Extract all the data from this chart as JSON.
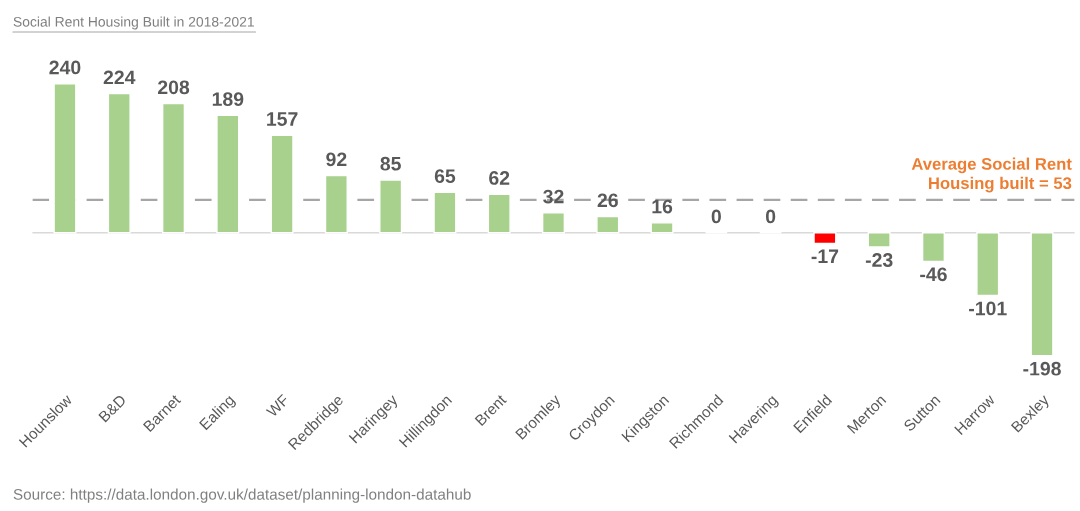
{
  "chart_data": {
    "type": "bar",
    "title": "Social Rent Housing Built in 2018-2021",
    "categories": [
      "Hounslow",
      "B&D",
      "Barnet",
      "Ealing",
      "WF",
      "Redbridge",
      "Haringey",
      "Hillingdon",
      "Brent",
      "Bromley",
      "Croydon",
      "Kingston",
      "Richmond",
      "Havering",
      "Enfield",
      "Merton",
      "Sutton",
      "Harrow",
      "Bexley"
    ],
    "values": [
      240,
      224,
      208,
      189,
      157,
      92,
      85,
      65,
      62,
      32,
      26,
      16,
      0,
      0,
      -17,
      -23,
      -46,
      -101,
      -198
    ],
    "colors": [
      "#a9d18e",
      "#a9d18e",
      "#a9d18e",
      "#a9d18e",
      "#a9d18e",
      "#a9d18e",
      "#a9d18e",
      "#a9d18e",
      "#a9d18e",
      "#a9d18e",
      "#a9d18e",
      "#a9d18e",
      null,
      null,
      "#ff0000",
      "#a9d18e",
      "#a9d18e",
      "#a9d18e",
      "#a9d18e"
    ],
    "data_labels": true,
    "tick_labels": "x",
    "ref_lines": [
      {
        "axis": "y",
        "value": 53,
        "label": "Average Social Rent\nHousing built = 53",
        "color": "#a6a6a6",
        "line_style": "dashed"
      }
    ],
    "annotations": [
      "Source: https://data.london.gov.uk/dataset/planning-london-datahub"
    ]
  }
}
